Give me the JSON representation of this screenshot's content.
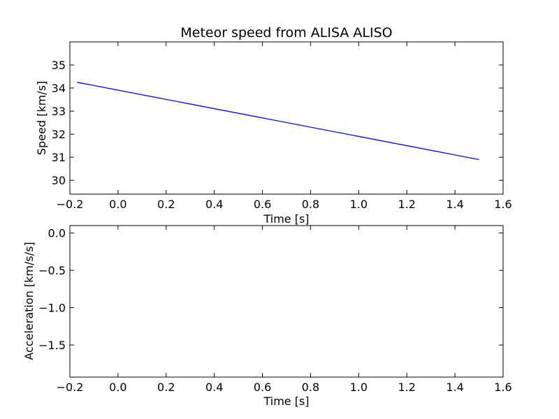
{
  "chart_data": [
    {
      "type": "line",
      "title": "Meteor speed from  ALISA ALISO",
      "xlabel": "Time [s]",
      "ylabel": "Speed [km/s]",
      "xlim": [
        -0.2,
        1.6
      ],
      "ylim": [
        29.4,
        36.0
      ],
      "x_ticks": [
        -0.2,
        0.0,
        0.2,
        0.4,
        0.6,
        0.8,
        1.0,
        1.2,
        1.4,
        1.6
      ],
      "x_tick_labels": [
        "−0.2",
        "0.0",
        "0.2",
        "0.4",
        "0.6",
        "0.8",
        "1.0",
        "1.2",
        "1.4",
        "1.6"
      ],
      "y_ticks": [
        30,
        31,
        32,
        33,
        34,
        35
      ],
      "y_tick_labels": [
        "30",
        "31",
        "32",
        "33",
        "34",
        "35"
      ],
      "grid": false,
      "series": [
        {
          "color": "#0000ff",
          "x": [
            -0.17,
            1.5
          ],
          "y": [
            34.25,
            30.9
          ]
        }
      ]
    },
    {
      "type": "line",
      "title": "",
      "xlabel": "Time [s]",
      "ylabel": "Acceleration [km/s/s]",
      "xlim": [
        -0.2,
        1.6
      ],
      "ylim": [
        -1.93,
        0.1
      ],
      "x_ticks": [
        -0.2,
        0.0,
        0.2,
        0.4,
        0.6,
        0.8,
        1.0,
        1.2,
        1.4,
        1.6
      ],
      "x_tick_labels": [
        "−0.2",
        "0.0",
        "0.2",
        "0.4",
        "0.6",
        "0.8",
        "1.0",
        "1.2",
        "1.4",
        "1.6"
      ],
      "y_ticks": [
        0.0,
        -0.5,
        -1.0,
        -1.5
      ],
      "y_tick_labels": [
        "0.0",
        "−0.5",
        "−1.0",
        "−1.5"
      ],
      "grid": false,
      "series": []
    }
  ]
}
